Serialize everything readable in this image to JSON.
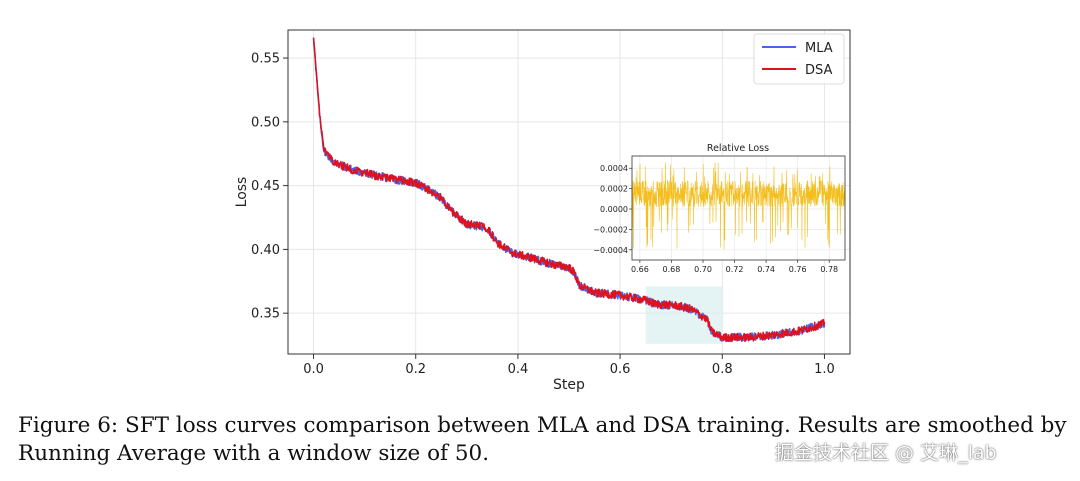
{
  "chart_data": [
    {
      "type": "line",
      "title": "",
      "xlabel": "Step",
      "ylabel": "Loss",
      "xlim": [
        -0.05,
        1.05
      ],
      "ylim": [
        0.318,
        0.572
      ],
      "xticks": [
        "0.0",
        "0.2",
        "0.4",
        "0.6",
        "0.8",
        "1.0"
      ],
      "yticks": [
        "0.35",
        "0.40",
        "0.45",
        "0.50",
        "0.55"
      ],
      "grid": true,
      "legend_position": "top-right",
      "series": [
        {
          "name": "MLA",
          "color": "#4466ee",
          "x": [
            0.0,
            0.005,
            0.012,
            0.02,
            0.04,
            0.08,
            0.12,
            0.16,
            0.2,
            0.22,
            0.25,
            0.27,
            0.3,
            0.34,
            0.36,
            0.39,
            0.42,
            0.47,
            0.5,
            0.51,
            0.52,
            0.55,
            0.6,
            0.65,
            0.67,
            0.71,
            0.74,
            0.77,
            0.78,
            0.8,
            0.85,
            0.9,
            0.95,
            1.0
          ],
          "values": [
            0.567,
            0.54,
            0.505,
            0.478,
            0.468,
            0.462,
            0.458,
            0.455,
            0.452,
            0.448,
            0.44,
            0.43,
            0.42,
            0.417,
            0.405,
            0.397,
            0.394,
            0.388,
            0.386,
            0.382,
            0.372,
            0.366,
            0.364,
            0.36,
            0.357,
            0.356,
            0.353,
            0.345,
            0.335,
            0.331,
            0.331,
            0.333,
            0.336,
            0.342
          ]
        },
        {
          "name": "DSA",
          "color": "#e0111b",
          "x": [
            0.0,
            0.005,
            0.012,
            0.02,
            0.04,
            0.08,
            0.12,
            0.16,
            0.2,
            0.22,
            0.25,
            0.27,
            0.3,
            0.34,
            0.36,
            0.39,
            0.42,
            0.47,
            0.5,
            0.51,
            0.52,
            0.55,
            0.6,
            0.65,
            0.67,
            0.71,
            0.74,
            0.77,
            0.78,
            0.8,
            0.85,
            0.9,
            0.95,
            1.0
          ],
          "values": [
            0.567,
            0.54,
            0.505,
            0.478,
            0.468,
            0.462,
            0.458,
            0.455,
            0.452,
            0.448,
            0.44,
            0.43,
            0.42,
            0.417,
            0.405,
            0.397,
            0.394,
            0.388,
            0.386,
            0.382,
            0.372,
            0.366,
            0.364,
            0.36,
            0.357,
            0.356,
            0.353,
            0.345,
            0.335,
            0.331,
            0.331,
            0.333,
            0.336,
            0.342
          ]
        }
      ],
      "highlight_region": {
        "x": [
          0.65,
          0.8
        ],
        "y": [
          0.326,
          0.371
        ],
        "color": "#d8eeee"
      }
    },
    {
      "type": "line",
      "title": "Relative Loss",
      "xlim": [
        0.655,
        0.79
      ],
      "ylim": [
        -0.0005,
        0.00052
      ],
      "xticks": [
        "0.66",
        "0.68",
        "0.70",
        "0.72",
        "0.74",
        "0.76",
        "0.78"
      ],
      "yticks": [
        "−0.0004",
        "−0.0002",
        "0.0000",
        "0.0002",
        "0.0004"
      ],
      "grid": true,
      "series": [
        {
          "name": "Relative Loss",
          "color": "#f2b705",
          "mean": 0.00015,
          "band_low": 0.0,
          "band_high": 0.0003
        }
      ]
    }
  ],
  "legend": {
    "mla": "MLA",
    "dsa": "DSA"
  },
  "caption": "Figure 6: SFT loss curves comparison between MLA and DSA training. Results are smoothed by Running Average with a window size of 50.",
  "watermark": "掘金技术社区 @ 艾琳_lab"
}
